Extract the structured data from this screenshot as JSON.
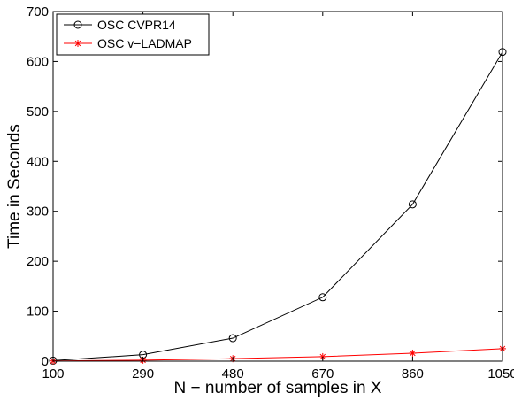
{
  "chart_data": {
    "type": "line",
    "title": "",
    "xlabel": "N − number of samples in X",
    "ylabel": "Time in Seconds",
    "x": [
      100,
      290,
      480,
      670,
      860,
      1050
    ],
    "x_tick_labels": [
      "100",
      "290",
      "480",
      "670",
      "860",
      "1050"
    ],
    "xlim": [
      100,
      1050
    ],
    "ylim": [
      0,
      700
    ],
    "y_ticks": [
      0,
      100,
      200,
      300,
      400,
      500,
      600,
      700
    ],
    "y_tick_labels": [
      "0",
      "100",
      "200",
      "300",
      "400",
      "500",
      "600",
      "700"
    ],
    "grid": false,
    "legend_position": "top-left",
    "series": [
      {
        "name": "OSC CVPR14",
        "color": "#000000",
        "marker": "circle",
        "values": [
          1,
          13,
          46,
          128,
          314,
          619
        ]
      },
      {
        "name": "OSC v−LADMAP",
        "color": "#ff0000",
        "marker": "asterisk",
        "values": [
          0.5,
          2,
          5,
          9,
          16,
          25
        ]
      }
    ]
  }
}
